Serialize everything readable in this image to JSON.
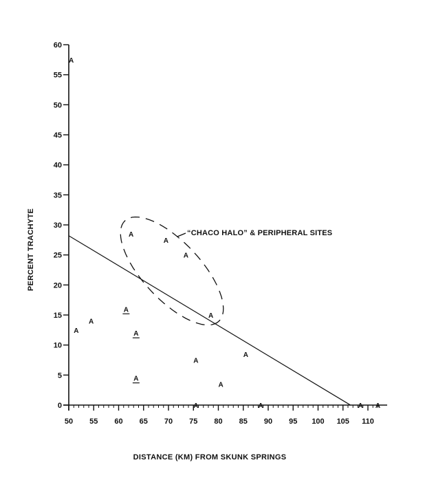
{
  "chart_data": {
    "type": "scatter",
    "xlabel": "DISTANCE (KM) FROM SKUNK SPRINGS",
    "ylabel": "PERCENT TRACHYTE",
    "xlim": [
      50,
      112
    ],
    "ylim": [
      0,
      60
    ],
    "x_ticks": [
      50,
      55,
      60,
      65,
      70,
      75,
      80,
      85,
      90,
      95,
      100,
      105,
      110
    ],
    "y_ticks": [
      0,
      5,
      10,
      15,
      20,
      25,
      30,
      35,
      40,
      45,
      50,
      55,
      60
    ],
    "marker_text": "A",
    "points": [
      {
        "x": 50.5,
        "y": 57.5,
        "underlined": false
      },
      {
        "x": 51.5,
        "y": 12.5,
        "underlined": false
      },
      {
        "x": 54.5,
        "y": 14,
        "underlined": false
      },
      {
        "x": 61.5,
        "y": 16,
        "underlined": true
      },
      {
        "x": 62.5,
        "y": 28.5,
        "underlined": false
      },
      {
        "x": 63.5,
        "y": 12,
        "underlined": true
      },
      {
        "x": 63.5,
        "y": 4.5,
        "underlined": true
      },
      {
        "x": 69.5,
        "y": 27.5,
        "underlined": false
      },
      {
        "x": 73.5,
        "y": 25,
        "underlined": false
      },
      {
        "x": 75.5,
        "y": 7.5,
        "underlined": false
      },
      {
        "x": 75.5,
        "y": 0,
        "underlined": false
      },
      {
        "x": 78.5,
        "y": 15,
        "underlined": false
      },
      {
        "x": 80.5,
        "y": 3.5,
        "underlined": false
      },
      {
        "x": 85.5,
        "y": 8.5,
        "underlined": false
      },
      {
        "x": 88.5,
        "y": 0,
        "underlined": false
      },
      {
        "x": 108.5,
        "y": 0,
        "underlined": false
      },
      {
        "x": 112,
        "y": 0,
        "underlined": false
      }
    ],
    "regression_line": {
      "x1": 50,
      "y1": 28.2,
      "x2": 106.5,
      "y2": 0
    },
    "annotation": {
      "text": "“CHACO HALO” & PERIPHERAL SITES",
      "region": "dashed ellipse"
    },
    "grid": false,
    "legend": "none"
  }
}
